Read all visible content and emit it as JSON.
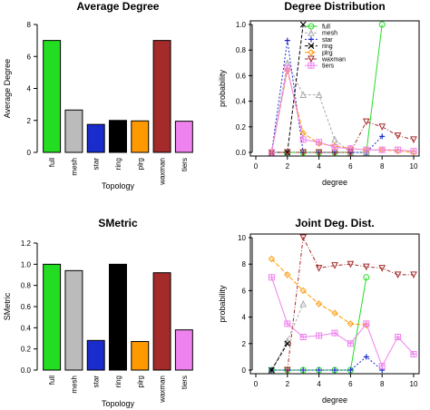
{
  "chart_data": [
    {
      "type": "bar",
      "title": "Average  Degree",
      "xlabel": "Topology",
      "ylabel": "Average Degree",
      "ylim": [
        0,
        8
      ],
      "yticks": [
        0,
        2,
        4,
        6,
        8
      ],
      "categories": [
        "full",
        "mesh",
        "star",
        "ring",
        "plrg",
        "waxman",
        "tiers"
      ],
      "values": [
        7.0,
        2.65,
        1.75,
        2.0,
        1.97,
        7.0,
        1.95
      ],
      "colors": [
        "#22dd22",
        "#bbbbbb",
        "#1a2ccc",
        "#000000",
        "#ff9900",
        "#a52a2a",
        "#ee82ee"
      ]
    },
    {
      "type": "line",
      "title": "Degree  Distribution",
      "xlabel": "degree",
      "ylabel": "probability",
      "xlim": [
        0,
        10
      ],
      "ylim": [
        0,
        1.0
      ],
      "xticks": [
        0,
        2,
        4,
        6,
        8,
        10
      ],
      "yticks": [
        0.0,
        0.2,
        0.4,
        0.6,
        0.8,
        1.0
      ],
      "legend_position": "top-center",
      "series": [
        {
          "name": "full",
          "color": "#22dd22",
          "marker": "circle",
          "dash": "",
          "points": [
            [
              1,
              0
            ],
            [
              2,
              0
            ],
            [
              3,
              0
            ],
            [
              4,
              0
            ],
            [
              5,
              0
            ],
            [
              6,
              0
            ],
            [
              7,
              0
            ],
            [
              8,
              1.0
            ]
          ]
        },
        {
          "name": "mesh",
          "color": "#aaaaaa",
          "marker": "triangle",
          "dash": "3,2",
          "points": [
            [
              1,
              0
            ],
            [
              2,
              0.7
            ],
            [
              3,
              0.45
            ],
            [
              4,
              0.45
            ],
            [
              5,
              0.1
            ],
            [
              6,
              0
            ],
            [
              7,
              0
            ]
          ]
        },
        {
          "name": "star",
          "color": "#1a2ccc",
          "marker": "plus",
          "dash": "2,2",
          "points": [
            [
              1,
              0
            ],
            [
              2,
              0.875
            ],
            [
              3,
              0
            ],
            [
              4,
              0
            ],
            [
              5,
              0
            ],
            [
              6,
              0
            ],
            [
              7,
              0
            ],
            [
              8,
              0.125
            ]
          ]
        },
        {
          "name": "ring",
          "color": "#000000",
          "marker": "x",
          "dash": "4,2",
          "points": [
            [
              1,
              0
            ],
            [
              2,
              0
            ],
            [
              3,
              1.0
            ]
          ]
        },
        {
          "name": "plrg",
          "color": "#ff9900",
          "marker": "diamond",
          "dash": "5,2",
          "points": [
            [
              1,
              0
            ],
            [
              2,
              0.64
            ],
            [
              3,
              0.15
            ],
            [
              4,
              0.07
            ],
            [
              5,
              0.05
            ],
            [
              6,
              0.03
            ],
            [
              7,
              0.02
            ],
            [
              8,
              0.02
            ],
            [
              9,
              0.01
            ],
            [
              10,
              0.0
            ]
          ]
        },
        {
          "name": "waxman",
          "color": "#a52a2a",
          "marker": "invtriangle",
          "dash": "4,2,1,2",
          "points": [
            [
              1,
              0
            ],
            [
              2,
              0
            ],
            [
              3,
              0
            ],
            [
              4,
              0
            ],
            [
              5,
              0
            ],
            [
              6,
              0
            ],
            [
              7,
              0.24
            ],
            [
              8,
              0.2
            ],
            [
              9,
              0.13
            ],
            [
              10,
              0.1
            ]
          ]
        },
        {
          "name": "tiers",
          "color": "#ee82ee",
          "marker": "square",
          "dash": "",
          "points": [
            [
              1,
              0
            ],
            [
              2,
              0.66
            ],
            [
              3,
              0.1
            ],
            [
              4,
              0.08
            ],
            [
              5,
              0.04
            ],
            [
              6,
              0.03
            ],
            [
              7,
              0.02
            ],
            [
              8,
              0.02
            ],
            [
              9,
              0.02
            ],
            [
              10,
              0.01
            ]
          ]
        }
      ]
    },
    {
      "type": "bar",
      "title": "SMetric",
      "xlabel": "Topology",
      "ylabel": "SMetric",
      "ylim": [
        0,
        1.2
      ],
      "yticks": [
        0.0,
        0.2,
        0.4,
        0.6,
        0.8,
        1.0,
        1.2
      ],
      "categories": [
        "full",
        "mesh",
        "star",
        "ring",
        "plrg",
        "waxman",
        "tiers"
      ],
      "values": [
        1.0,
        0.94,
        0.28,
        1.0,
        0.27,
        0.92,
        0.38
      ],
      "colors": [
        "#22dd22",
        "#bbbbbb",
        "#1a2ccc",
        "#000000",
        "#ff9900",
        "#a52a2a",
        "#ee82ee"
      ]
    },
    {
      "type": "line",
      "title": "Joint  Deg.  Dist.",
      "xlabel": "degree",
      "ylabel": "probability",
      "xlim": [
        0,
        10
      ],
      "ylim": [
        0,
        10
      ],
      "xticks": [
        0,
        2,
        4,
        6,
        8,
        10
      ],
      "yticks": [
        0,
        2,
        4,
        6,
        8,
        10
      ],
      "series": [
        {
          "name": "full",
          "color": "#22dd22",
          "marker": "circle",
          "dash": "",
          "points": [
            [
              1,
              0
            ],
            [
              2,
              0
            ],
            [
              3,
              0
            ],
            [
              4,
              0
            ],
            [
              5,
              0
            ],
            [
              6,
              0
            ],
            [
              7,
              7.0
            ]
          ]
        },
        {
          "name": "mesh",
          "color": "#aaaaaa",
          "marker": "triangle",
          "dash": "3,2",
          "points": [
            [
              1,
              0
            ],
            [
              2,
              2.2
            ],
            [
              3,
              5.0
            ]
          ]
        },
        {
          "name": "star",
          "color": "#1a2ccc",
          "marker": "plus",
          "dash": "2,2",
          "points": [
            [
              1,
              0
            ],
            [
              2,
              0
            ],
            [
              3,
              0
            ],
            [
              4,
              0
            ],
            [
              5,
              0
            ],
            [
              6,
              0
            ],
            [
              7,
              1.0
            ],
            [
              8,
              0
            ]
          ]
        },
        {
          "name": "ring",
          "color": "#000000",
          "marker": "x",
          "dash": "4,2",
          "points": [
            [
              1,
              0
            ],
            [
              2,
              2.0
            ]
          ]
        },
        {
          "name": "plrg",
          "color": "#ff9900",
          "marker": "diamond",
          "dash": "5,2",
          "points": [
            [
              1,
              8.4
            ],
            [
              2,
              7.2
            ],
            [
              3,
              6.0
            ],
            [
              4,
              5.0
            ],
            [
              5,
              4.3
            ],
            [
              6,
              3.5
            ],
            [
              7,
              3.4
            ]
          ]
        },
        {
          "name": "waxman",
          "color": "#a52a2a",
          "marker": "invtriangle",
          "dash": "4,2,1,2",
          "points": [
            [
              2,
              0
            ],
            [
              3,
              10.0
            ],
            [
              4,
              7.7
            ],
            [
              5,
              7.9
            ],
            [
              6,
              8.0
            ],
            [
              7,
              7.8
            ],
            [
              8,
              7.7
            ],
            [
              9,
              7.2
            ],
            [
              10,
              7.2
            ]
          ]
        },
        {
          "name": "tiers",
          "color": "#ee82ee",
          "marker": "square",
          "dash": "",
          "points": [
            [
              1,
              7.0
            ],
            [
              2,
              3.5
            ],
            [
              3,
              2.5
            ],
            [
              4,
              2.6
            ],
            [
              5,
              2.8
            ],
            [
              6,
              2.0
            ],
            [
              7,
              3.5
            ],
            [
              8,
              0.3
            ],
            [
              9,
              2.5
            ],
            [
              10,
              1.2
            ]
          ]
        }
      ]
    }
  ]
}
